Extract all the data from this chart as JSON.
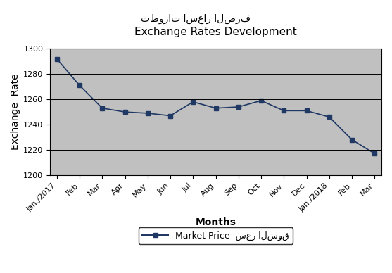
{
  "title_arabic": "تطورات اسعار الصرف",
  "title_english": "Exchange Rates Development",
  "xlabel": "Months",
  "ylabel": "Exchange  Rate",
  "x_labels": [
    "Jan./2017",
    "Feb",
    "Mar",
    "Apr",
    "May",
    "Jun",
    "Jul",
    "Aug",
    "Sep",
    "Oct",
    "Nov",
    "Dec",
    "Jan./2018",
    "Feb",
    "Mar"
  ],
  "values": [
    1292,
    1271,
    1253,
    1250,
    1249,
    1247,
    1258,
    1253,
    1254,
    1259,
    1251,
    1251,
    1246,
    1228,
    1217
  ],
  "ylim": [
    1200,
    1300
  ],
  "yticks": [
    1200,
    1220,
    1240,
    1260,
    1280,
    1300
  ],
  "line_color": "#1F3864",
  "marker_color": "#1F3864",
  "plot_bg_color": "#C0C0C0",
  "fig_bg_color": "#FFFFFF",
  "legend_label_en": "Market Price",
  "legend_label_ar": "سعر السوق",
  "grid_color": "#000000",
  "title_fontsize_arabic": 10,
  "title_fontsize_english": 11,
  "axis_label_fontsize": 10,
  "tick_fontsize": 8,
  "legend_fontsize": 9
}
